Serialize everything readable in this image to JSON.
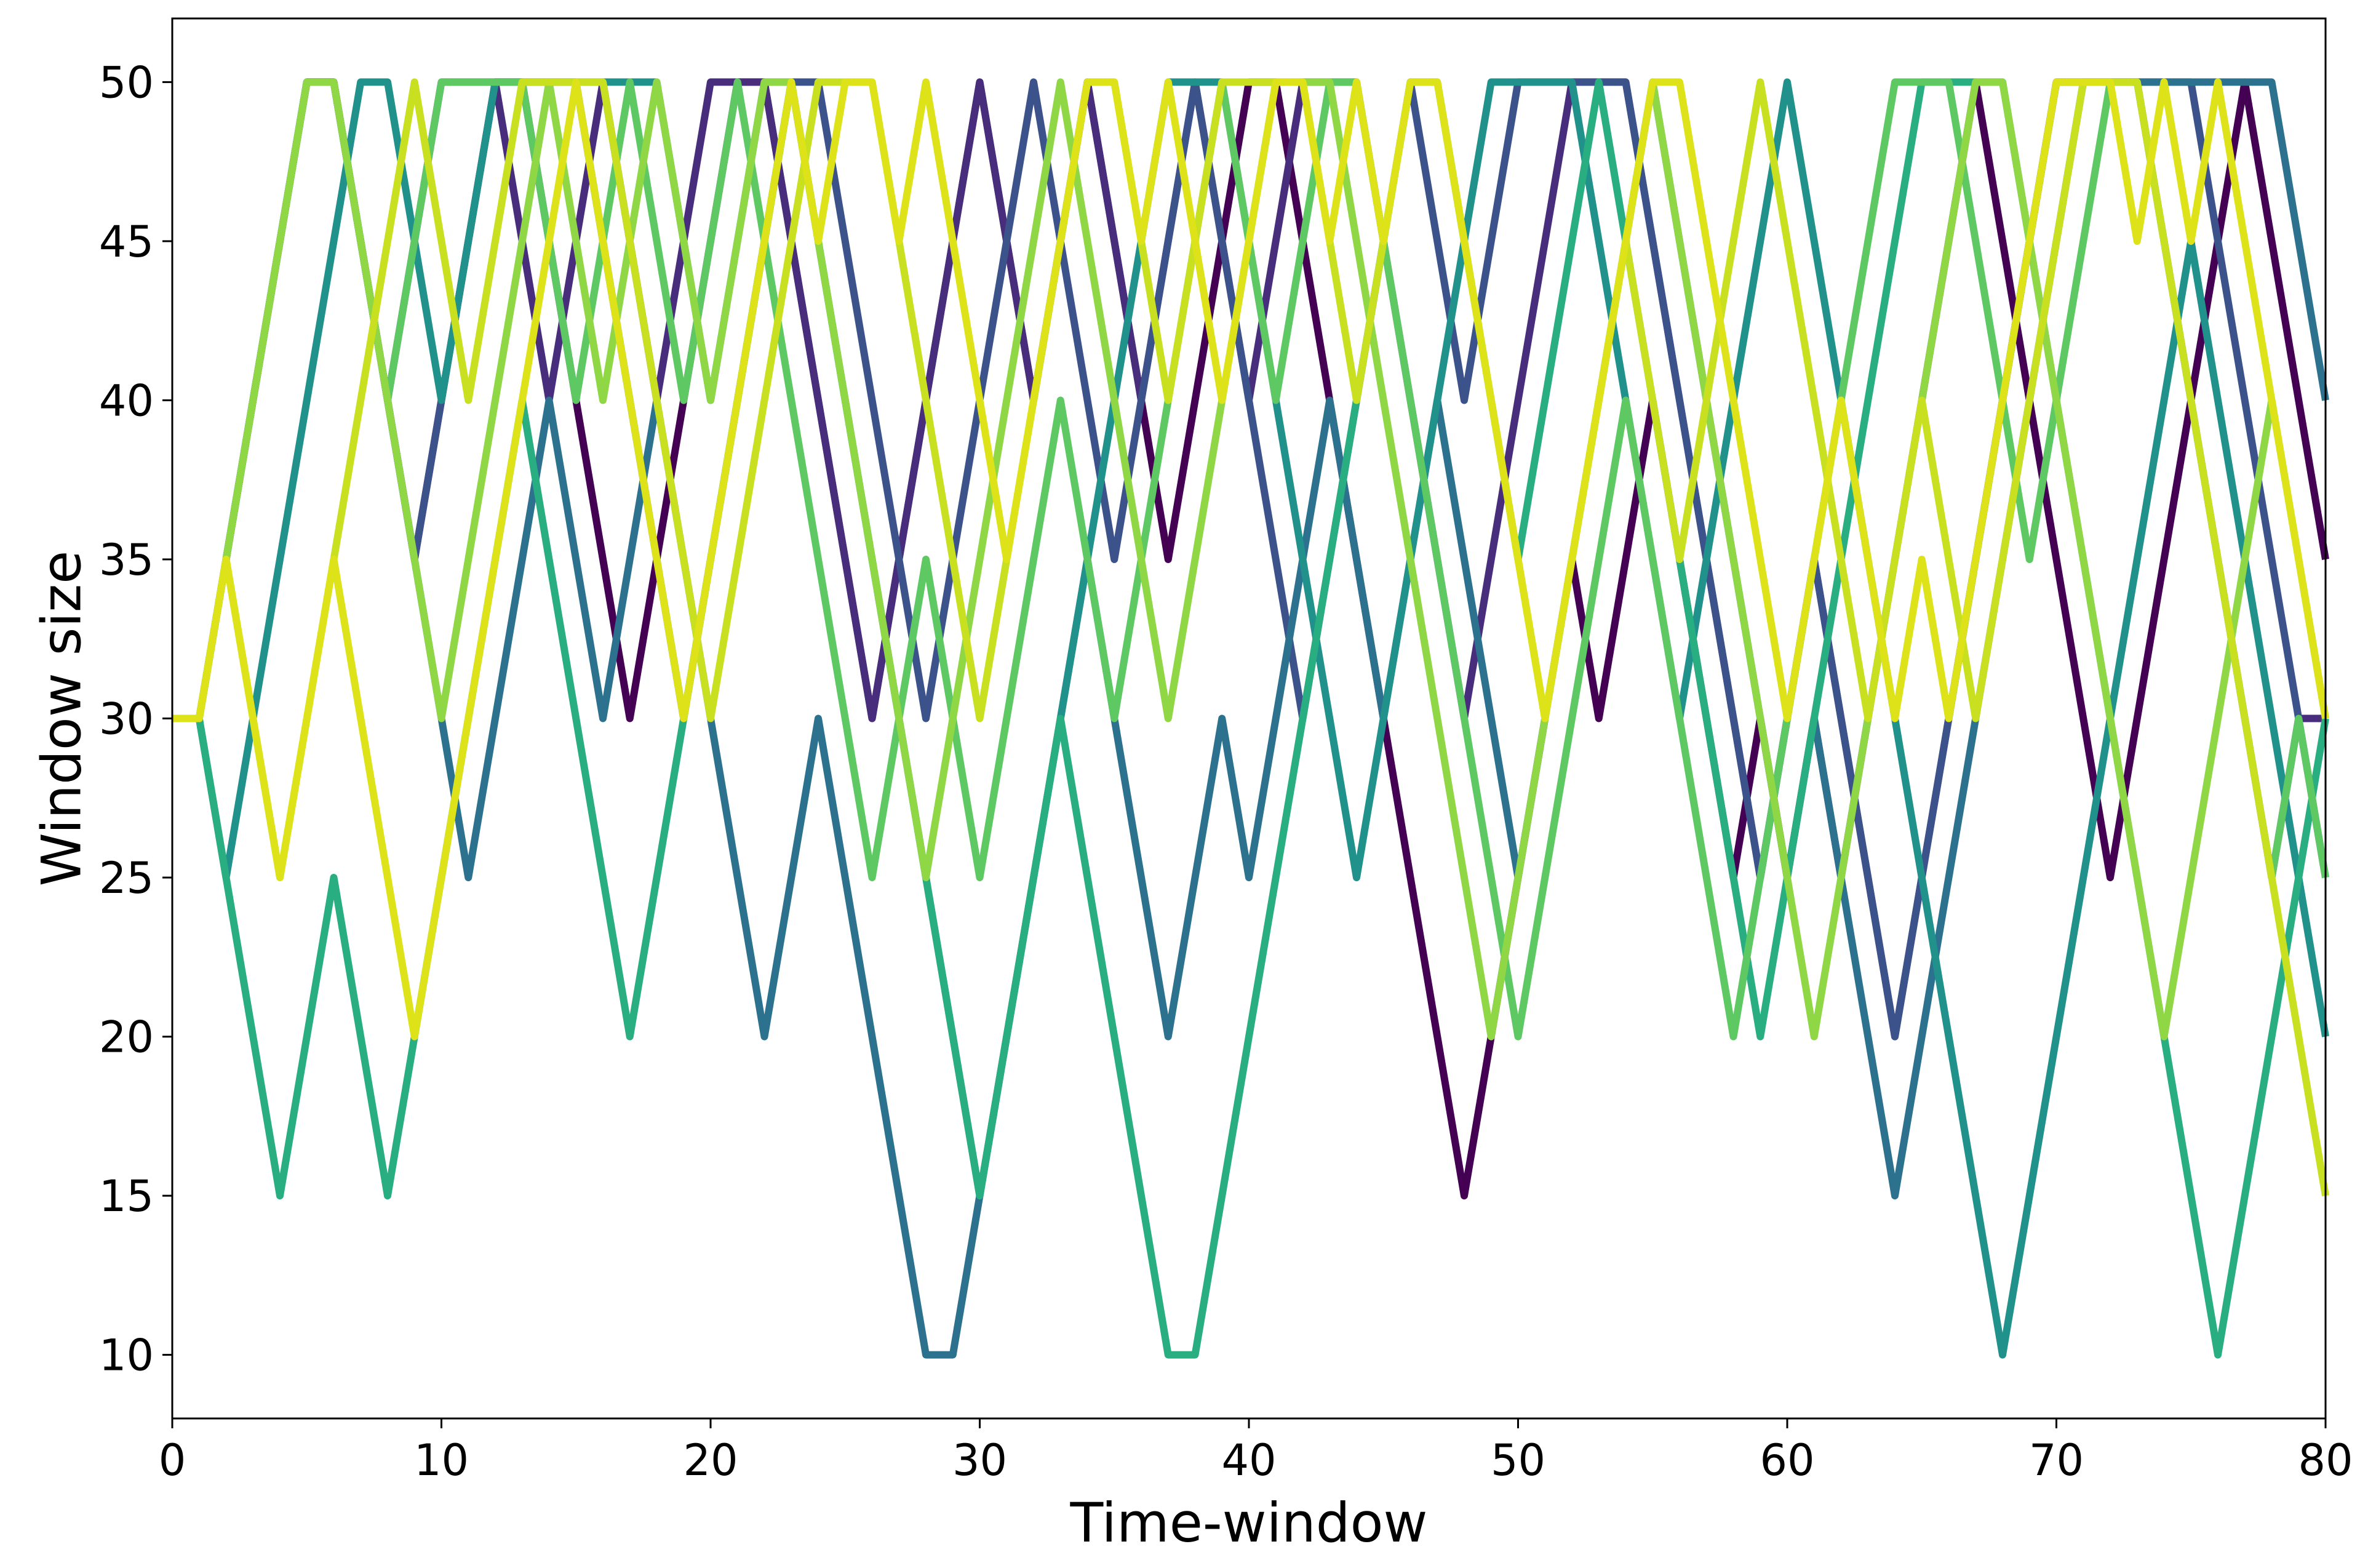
{
  "chart_data": {
    "type": "line",
    "title": "",
    "xlabel": "Time-window",
    "ylabel": "Window size",
    "xlim": [
      0,
      80
    ],
    "ylim": [
      8,
      52
    ],
    "xticks": [
      0,
      10,
      20,
      30,
      40,
      50,
      60,
      70,
      80
    ],
    "yticks": [
      10,
      15,
      20,
      25,
      30,
      35,
      40,
      45,
      50
    ],
    "grid": false,
    "legend": "none",
    "colormap": "viridis",
    "x": [
      0,
      1,
      2,
      3,
      4,
      5,
      6,
      7,
      8,
      9,
      10,
      11,
      12,
      13,
      14,
      15,
      16,
      17,
      18,
      19,
      20,
      21,
      22,
      23,
      24,
      25,
      26,
      27,
      28,
      29,
      30,
      31,
      32,
      33,
      34,
      35,
      36,
      37,
      38,
      39,
      40,
      41,
      42,
      43,
      44,
      45,
      46,
      47,
      48,
      49,
      50,
      51,
      52,
      53,
      54,
      55,
      56,
      57,
      58,
      59,
      60,
      61,
      62,
      63,
      64,
      65,
      66,
      67,
      68,
      69,
      70,
      71,
      72,
      73,
      74,
      75,
      76,
      77,
      78,
      79,
      80
    ],
    "series": [
      {
        "color": "#440154",
        "values": [
          30,
          30,
          35,
          40,
          45,
          50,
          50,
          45,
          40,
          35,
          40,
          45,
          50,
          50,
          45,
          40,
          35,
          30,
          35,
          40,
          45,
          50,
          50,
          45,
          40,
          35,
          30,
          35,
          40,
          45,
          50,
          45,
          40,
          45,
          50,
          45,
          40,
          35,
          40,
          45,
          50,
          50,
          45,
          40,
          35,
          30,
          25,
          20,
          15,
          20,
          25,
          30,
          35,
          30,
          35,
          40,
          35,
          30,
          25,
          30,
          25,
          30,
          25,
          30,
          35,
          40,
          45,
          50,
          45,
          40,
          35,
          30,
          25,
          30,
          35,
          40,
          45,
          50,
          45,
          40,
          35
        ]
      },
      {
        "color": "#472d7b",
        "values": [
          30,
          30,
          35,
          40,
          45,
          50,
          50,
          45,
          40,
          45,
          50,
          50,
          50,
          45,
          40,
          45,
          50,
          45,
          40,
          45,
          50,
          50,
          50,
          45,
          40,
          35,
          30,
          35,
          40,
          45,
          50,
          45,
          40,
          45,
          50,
          45,
          40,
          45,
          50,
          45,
          40,
          45,
          50,
          50,
          50,
          45,
          40,
          35,
          30,
          35,
          40,
          45,
          50,
          50,
          50,
          45,
          40,
          35,
          30,
          25,
          30,
          35,
          30,
          25,
          20,
          25,
          30,
          35,
          40,
          45,
          50,
          50,
          50,
          50,
          45,
          40,
          35,
          30,
          25,
          30,
          30
        ]
      },
      {
        "color": "#3b528b",
        "values": [
          30,
          30,
          35,
          40,
          45,
          50,
          50,
          45,
          40,
          35,
          40,
          45,
          50,
          50,
          50,
          50,
          45,
          40,
          35,
          30,
          35,
          40,
          45,
          50,
          50,
          45,
          40,
          35,
          30,
          35,
          40,
          45,
          50,
          45,
          40,
          35,
          40,
          45,
          50,
          45,
          40,
          35,
          30,
          35,
          40,
          45,
          50,
          45,
          40,
          45,
          50,
          50,
          50,
          50,
          50,
          45,
          40,
          35,
          30,
          25,
          30,
          35,
          30,
          25,
          20,
          25,
          30,
          35,
          40,
          45,
          50,
          50,
          50,
          50,
          50,
          50,
          45,
          40,
          35,
          30,
          25
        ]
      },
      {
        "color": "#2c728e",
        "values": [
          30,
          30,
          35,
          40,
          45,
          50,
          50,
          45,
          40,
          35,
          30,
          25,
          30,
          35,
          40,
          35,
          30,
          35,
          40,
          35,
          30,
          25,
          20,
          25,
          30,
          25,
          20,
          15,
          10,
          10,
          15,
          20,
          25,
          30,
          35,
          30,
          25,
          20,
          25,
          30,
          25,
          30,
          35,
          40,
          35,
          30,
          35,
          40,
          35,
          30,
          25,
          30,
          35,
          40,
          45,
          50,
          45,
          40,
          35,
          30,
          25,
          30,
          25,
          20,
          15,
          20,
          25,
          30,
          35,
          40,
          45,
          50,
          50,
          50,
          50,
          50,
          50,
          50,
          50,
          45,
          40
        ]
      },
      {
        "color": "#21918c",
        "values": [
          30,
          30,
          25,
          30,
          35,
          40,
          45,
          50,
          50,
          45,
          40,
          45,
          50,
          50,
          50,
          50,
          50,
          50,
          50,
          45,
          40,
          45,
          50,
          50,
          45,
          40,
          35,
          30,
          25,
          20,
          15,
          20,
          25,
          30,
          35,
          40,
          45,
          50,
          50,
          50,
          45,
          40,
          35,
          30,
          25,
          30,
          35,
          40,
          45,
          50,
          50,
          50,
          50,
          45,
          40,
          35,
          30,
          35,
          40,
          45,
          50,
          45,
          40,
          35,
          30,
          25,
          20,
          15,
          10,
          15,
          20,
          25,
          30,
          35,
          40,
          45,
          40,
          35,
          30,
          25,
          20
        ]
      },
      {
        "color": "#28ae80",
        "values": [
          30,
          30,
          25,
          20,
          15,
          20,
          25,
          20,
          15,
          20,
          25,
          30,
          35,
          40,
          35,
          30,
          25,
          20,
          25,
          30,
          35,
          40,
          45,
          50,
          45,
          40,
          35,
          30,
          25,
          20,
          15,
          20,
          25,
          30,
          25,
          20,
          15,
          10,
          10,
          15,
          20,
          25,
          30,
          35,
          40,
          45,
          50,
          50,
          45,
          40,
          35,
          40,
          45,
          50,
          45,
          40,
          35,
          30,
          25,
          20,
          25,
          30,
          35,
          40,
          45,
          50,
          50,
          50,
          50,
          45,
          40,
          35,
          30,
          25,
          20,
          15,
          10,
          15,
          20,
          25,
          30
        ]
      },
      {
        "color": "#5ec962",
        "values": [
          30,
          30,
          35,
          40,
          45,
          50,
          50,
          45,
          40,
          45,
          50,
          50,
          50,
          50,
          45,
          40,
          45,
          50,
          45,
          40,
          45,
          50,
          45,
          40,
          35,
          30,
          25,
          30,
          35,
          30,
          25,
          30,
          35,
          40,
          35,
          30,
          35,
          40,
          45,
          50,
          45,
          40,
          45,
          50,
          50,
          45,
          40,
          35,
          30,
          25,
          20,
          25,
          30,
          35,
          40,
          35,
          30,
          25,
          20,
          25,
          30,
          35,
          40,
          45,
          50,
          50,
          50,
          45,
          40,
          35,
          40,
          45,
          50,
          50,
          45,
          40,
          35,
          30,
          25,
          30,
          25
        ]
      },
      {
        "color": "#8fd744",
        "values": [
          30,
          30,
          35,
          40,
          45,
          50,
          50,
          45,
          40,
          35,
          30,
          35,
          40,
          45,
          50,
          45,
          40,
          45,
          50,
          45,
          40,
          45,
          50,
          50,
          45,
          40,
          35,
          30,
          25,
          30,
          35,
          40,
          45,
          50,
          45,
          40,
          35,
          30,
          35,
          40,
          45,
          50,
          50,
          50,
          45,
          40,
          35,
          30,
          25,
          20,
          25,
          30,
          35,
          40,
          45,
          50,
          45,
          40,
          35,
          30,
          25,
          20,
          25,
          30,
          35,
          40,
          45,
          50,
          50,
          45,
          40,
          35,
          30,
          25,
          20,
          25,
          30,
          35,
          40,
          35,
          30
        ]
      },
      {
        "color": "#c8e020",
        "values": [
          30,
          30,
          35,
          30,
          25,
          30,
          35,
          40,
          45,
          50,
          45,
          40,
          45,
          50,
          50,
          50,
          50,
          45,
          40,
          35,
          30,
          35,
          40,
          45,
          50,
          50,
          50,
          45,
          40,
          35,
          30,
          35,
          40,
          45,
          50,
          50,
          45,
          40,
          45,
          50,
          50,
          50,
          50,
          45,
          40,
          45,
          50,
          50,
          45,
          40,
          35,
          30,
          35,
          40,
          45,
          40,
          35,
          40,
          45,
          50,
          45,
          40,
          35,
          30,
          35,
          40,
          35,
          30,
          35,
          40,
          45,
          50,
          50,
          50,
          45,
          40,
          35,
          30,
          25,
          20,
          15
        ]
      },
      {
        "color": "#dde318",
        "values": [
          30,
          30,
          35,
          30,
          25,
          30,
          35,
          30,
          25,
          20,
          25,
          30,
          35,
          40,
          45,
          50,
          45,
          40,
          35,
          30,
          35,
          40,
          45,
          50,
          45,
          50,
          50,
          45,
          50,
          45,
          40,
          35,
          40,
          45,
          50,
          50,
          45,
          50,
          45,
          40,
          45,
          50,
          50,
          45,
          50,
          45,
          50,
          50,
          45,
          40,
          35,
          30,
          35,
          40,
          45,
          50,
          50,
          45,
          40,
          35,
          30,
          35,
          40,
          35,
          30,
          35,
          30,
          35,
          40,
          45,
          50,
          50,
          50,
          45,
          50,
          45,
          50,
          45,
          40,
          35,
          30
        ]
      }
    ]
  }
}
